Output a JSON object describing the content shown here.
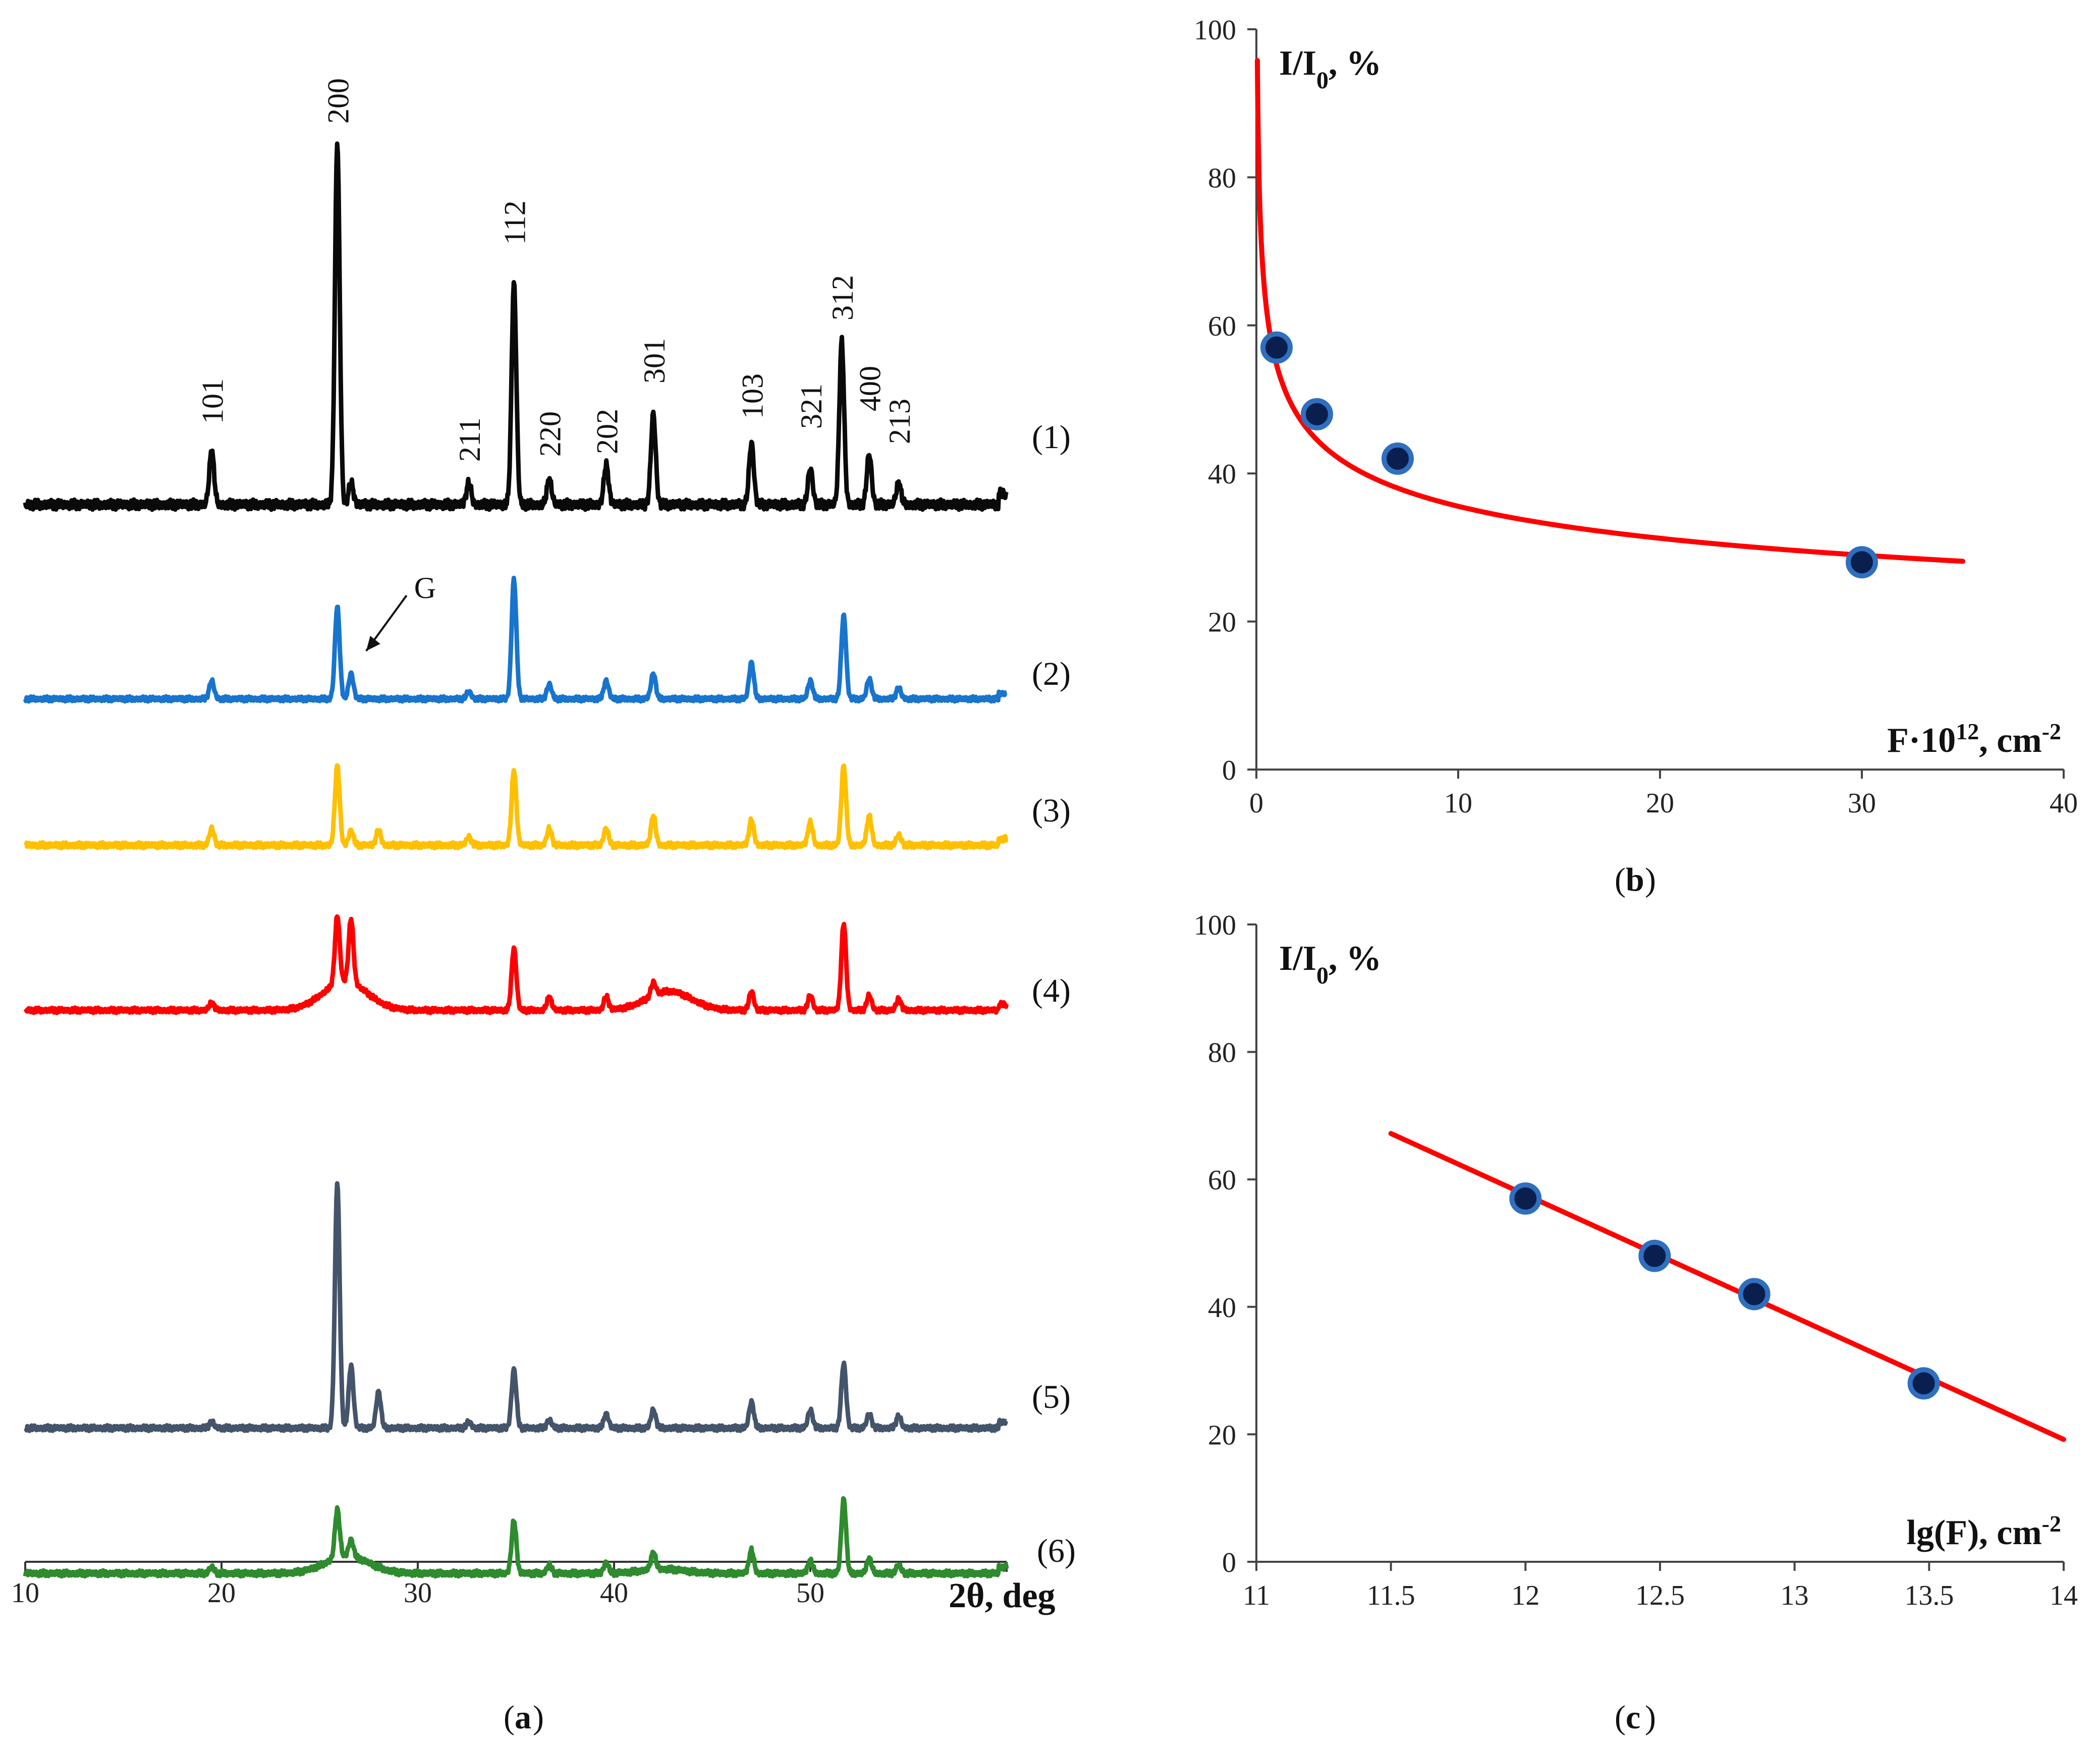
{
  "colors": {
    "black": "#0a0a0a",
    "blue": "#1874cd",
    "gold": "#ffc000",
    "red": "#ff0000",
    "slate": "#44546a",
    "green": "#2e8b2e",
    "fit": "#ff0000",
    "marker_fill": "#0b1f4e",
    "marker_edge": "#2f6fbf"
  },
  "chart_data": [
    {
      "id": "a",
      "type": "line",
      "panel_label": "(a)",
      "panel_letter": "a",
      "xlabel": "2θ, deg",
      "xlim": [
        10,
        60
      ],
      "xticks": [
        10,
        20,
        30,
        40,
        50
      ],
      "y_axis": "hidden (stacked, offset patterns)",
      "series": [
        {
          "name": "(1)",
          "color": "black",
          "baseline": 0.0,
          "peaks": [
            [
              19.5,
              0.15
            ],
            [
              25.9,
              1.0
            ],
            [
              26.6,
              0.06
            ],
            [
              32.6,
              0.06
            ],
            [
              34.9,
              0.61
            ],
            [
              36.7,
              0.07
            ],
            [
              39.6,
              0.11
            ],
            [
              42.0,
              0.25
            ],
            [
              47.0,
              0.17
            ],
            [
              50.0,
              0.1
            ],
            [
              51.6,
              0.45
            ],
            [
              53.0,
              0.14
            ],
            [
              54.5,
              0.06
            ]
          ]
        },
        {
          "name": "(2)",
          "color": "blue",
          "baseline": 0.0,
          "peaks": [
            [
              19.5,
              0.1
            ],
            [
              25.9,
              0.51
            ],
            [
              26.6,
              0.14
            ],
            [
              32.6,
              0.04
            ],
            [
              34.9,
              0.66
            ],
            [
              36.7,
              0.08
            ],
            [
              39.6,
              0.1
            ],
            [
              42.0,
              0.14
            ],
            [
              47.0,
              0.2
            ],
            [
              50.0,
              0.1
            ],
            [
              51.7,
              0.46
            ],
            [
              53.0,
              0.11
            ],
            [
              54.5,
              0.06
            ]
          ]
        },
        {
          "name": "(3)",
          "color": "gold",
          "baseline": 0.0,
          "peaks": [
            [
              19.5,
              0.08
            ],
            [
              25.9,
              0.38
            ],
            [
              26.6,
              0.07
            ],
            [
              28.0,
              0.07
            ],
            [
              32.6,
              0.04
            ],
            [
              34.9,
              0.36
            ],
            [
              36.7,
              0.08
            ],
            [
              39.6,
              0.08
            ],
            [
              42.0,
              0.14
            ],
            [
              47.0,
              0.12
            ],
            [
              50.0,
              0.11
            ],
            [
              51.7,
              0.38
            ],
            [
              53.0,
              0.14
            ],
            [
              54.5,
              0.05
            ]
          ]
        },
        {
          "name": "(4)",
          "color": "red",
          "baseline": 0.0,
          "peaks": [
            [
              19.5,
              0.04
            ],
            [
              25.9,
              0.36
            ],
            [
              26.6,
              0.34
            ],
            [
              34.9,
              0.33
            ],
            [
              36.7,
              0.07
            ],
            [
              39.6,
              0.07
            ],
            [
              42.0,
              0.07
            ],
            [
              47.0,
              0.1
            ],
            [
              50.0,
              0.08
            ],
            [
              51.7,
              0.46
            ],
            [
              53.0,
              0.08
            ],
            [
              54.5,
              0.06
            ]
          ],
          "humps": [
            [
              26.3,
              0.15
            ],
            [
              42.8,
              0.1
            ]
          ]
        },
        {
          "name": "(5)",
          "color": "slate",
          "baseline": 0.0,
          "peaks": [
            [
              19.5,
              0.03
            ],
            [
              25.9,
              1.22
            ],
            [
              26.6,
              0.31
            ],
            [
              28.0,
              0.18
            ],
            [
              32.6,
              0.03
            ],
            [
              34.9,
              0.29
            ],
            [
              36.7,
              0.04
            ],
            [
              39.6,
              0.07
            ],
            [
              42.0,
              0.09
            ],
            [
              47.0,
              0.13
            ],
            [
              50.0,
              0.09
            ],
            [
              51.7,
              0.32
            ],
            [
              53.0,
              0.07
            ],
            [
              54.5,
              0.06
            ]
          ]
        },
        {
          "name": "(6)",
          "color": "green",
          "baseline": 0.0,
          "peaks": [
            [
              19.5,
              0.03
            ],
            [
              25.9,
              0.23
            ],
            [
              26.6,
              0.08
            ],
            [
              34.9,
              0.25
            ],
            [
              36.7,
              0.04
            ],
            [
              39.6,
              0.05
            ],
            [
              42.0,
              0.08
            ],
            [
              47.0,
              0.11
            ],
            [
              50.0,
              0.06
            ],
            [
              51.7,
              0.35
            ],
            [
              53.0,
              0.07
            ],
            [
              54.5,
              0.04
            ]
          ],
          "humps": [
            [
              26.4,
              0.08
            ],
            [
              42.5,
              0.02
            ]
          ]
        }
      ],
      "annotations": [
        {
          "text": "101",
          "x": 19.5
        },
        {
          "text": "200",
          "x": 25.9
        },
        {
          "text": "211",
          "x": 32.6
        },
        {
          "text": "112",
          "x": 34.9
        },
        {
          "text": "220",
          "x": 36.7
        },
        {
          "text": "202",
          "x": 39.6
        },
        {
          "text": "301",
          "x": 42.0
        },
        {
          "text": "103",
          "x": 47.0
        },
        {
          "text": "321",
          "x": 50.0
        },
        {
          "text": "312",
          "x": 51.6
        },
        {
          "text": "400",
          "x": 53.0
        },
        {
          "text": "213",
          "x": 54.5
        },
        {
          "text": "G",
          "x": 26.6,
          "pattern": "(2)"
        }
      ]
    },
    {
      "id": "b",
      "type": "scatter",
      "panel_label": "(b)",
      "panel_letter": "b",
      "ylabel_main": "I/I",
      "ylabel_sub": "0",
      "ylabel_tail": ", %",
      "xlabel_main": "F·10",
      "xlabel_sup": "12",
      "xlabel_tail": ", cm",
      "xlabel_sup2": "-2",
      "xlim": [
        0,
        40
      ],
      "ylim": [
        0,
        100
      ],
      "xticks": [
        0,
        10,
        20,
        30,
        40
      ],
      "yticks": [
        0,
        20,
        40,
        60,
        80,
        100
      ],
      "points": [
        [
          1,
          57
        ],
        [
          3,
          48
        ],
        [
          7,
          42
        ],
        [
          30,
          28
        ]
      ],
      "fit": {
        "type": "power",
        "a": 54.7,
        "b": -0.187,
        "x_range": [
          0.05,
          35
        ]
      }
    },
    {
      "id": "c",
      "type": "scatter",
      "panel_label": "(c)",
      "panel_letter": "c",
      "ylabel_main": "I/I",
      "ylabel_sub": "0",
      "ylabel_tail": ", %",
      "xlabel_main": "lg(F), cm",
      "xlabel_sup": "-2",
      "xlim": [
        11,
        14
      ],
      "ylim": [
        0,
        100
      ],
      "xticks": [
        "11",
        "11.5",
        "12",
        "12.5",
        "13",
        "13.5",
        "14"
      ],
      "yticks": [
        0,
        20,
        40,
        60,
        80,
        100
      ],
      "points": [
        [
          12.0,
          57
        ],
        [
          12.48,
          48
        ],
        [
          12.85,
          42
        ],
        [
          13.48,
          28
        ]
      ],
      "fit": {
        "type": "linear",
        "slope": -19.2,
        "intercept": 288,
        "x_range": [
          11.5,
          14.0
        ]
      }
    }
  ]
}
